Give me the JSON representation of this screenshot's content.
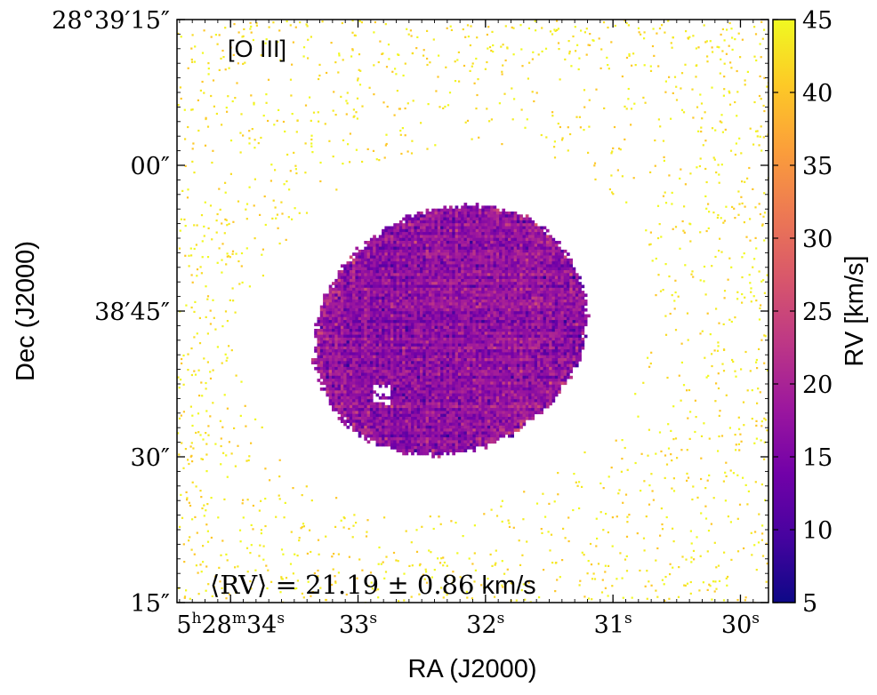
{
  "chart_data": {
    "type": "heatmap",
    "title": "[O III]",
    "xlabel": "RA (J2000)",
    "ylabel": "Dec (J2000)",
    "x_ticks": [
      {
        "h": "5",
        "m": "28",
        "s": "34",
        "label": "5h28m34s",
        "sec": 34
      },
      {
        "s": "33",
        "label": "33s",
        "sec": 33
      },
      {
        "s": "32",
        "label": "32s",
        "sec": 32
      },
      {
        "s": "31",
        "label": "31s",
        "sec": 31
      },
      {
        "s": "30",
        "label": "30s",
        "sec": 30
      }
    ],
    "y_ticks": [
      {
        "label": "28°39′15″",
        "arcsec": 15
      },
      {
        "label": "00″",
        "arcsec": 0
      },
      {
        "label": "38′45″",
        "arcsec": -15
      },
      {
        "label": "30″",
        "arcsec": -30
      },
      {
        "label": "15″",
        "arcsec": -45
      }
    ],
    "xlim_sec": [
      34.42,
      29.78
    ],
    "ylim_arcsec": [
      -45,
      15
    ],
    "colorbar": {
      "label": "RV [km/s]",
      "colormap": "plasma",
      "range": [
        5,
        45
      ],
      "ticks": [
        "5",
        "10",
        "15",
        "20",
        "25",
        "30",
        "35",
        "40",
        "45"
      ]
    },
    "nebula_mean_rv": 21.19,
    "nebula_rv_uncertainty": 0.86,
    "annotation": {
      "prefix": "⟨RV⟩ = ",
      "value": "21.19",
      "pm": " ± ",
      "err": "0.86",
      "unit": "km/s"
    },
    "background_rv": "≈ 45 (sparse noise pixels)",
    "colors": {
      "plasma_stops": [
        "#0d0887",
        "#46039f",
        "#7201a8",
        "#9c179e",
        "#bd3786",
        "#d8576b",
        "#ed7953",
        "#fb9f3a",
        "#fdca26",
        "#f0f921"
      ]
    }
  }
}
